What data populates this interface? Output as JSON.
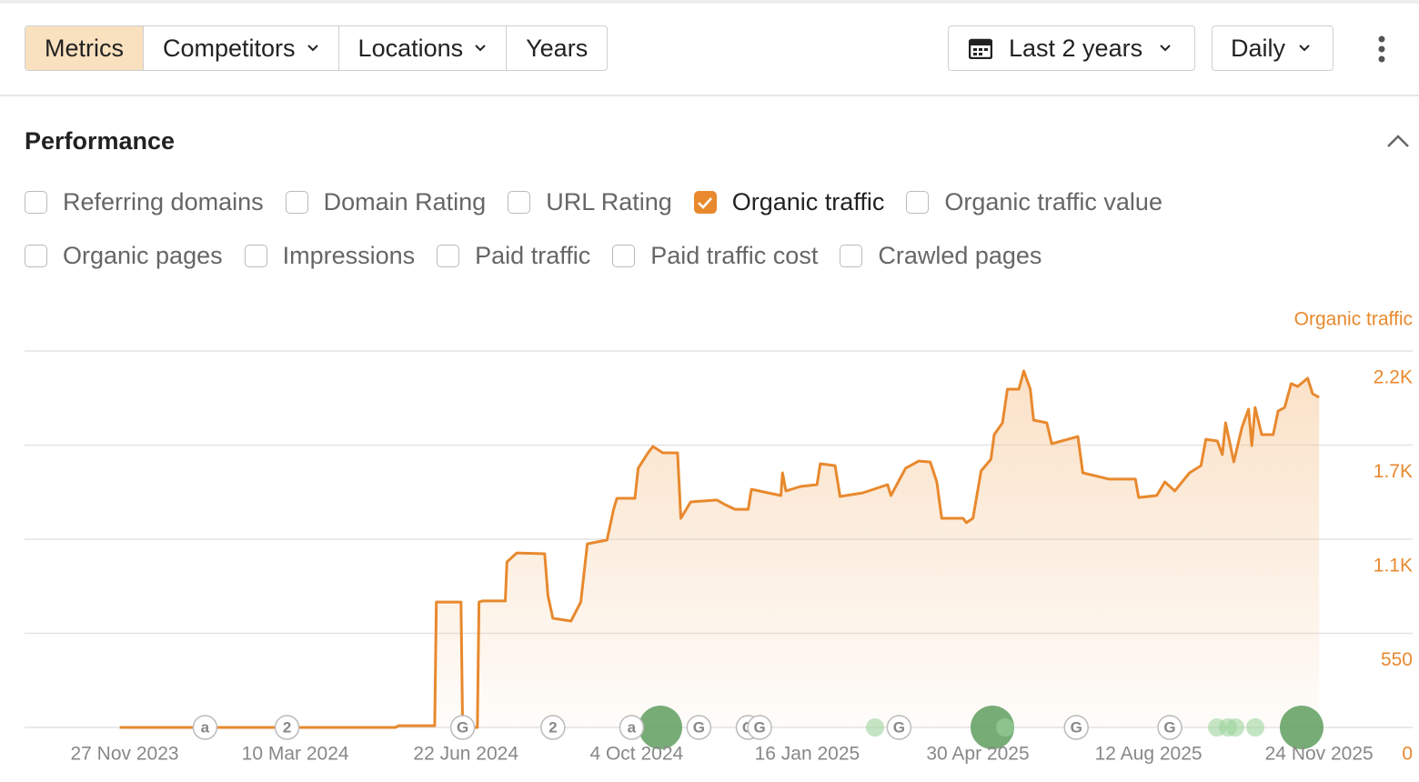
{
  "toolbar": {
    "tabs": [
      {
        "label": "Metrics",
        "active": true,
        "dropdown": false
      },
      {
        "label": "Competitors",
        "active": false,
        "dropdown": true
      },
      {
        "label": "Locations",
        "active": false,
        "dropdown": true
      },
      {
        "label": "Years",
        "active": false,
        "dropdown": false
      }
    ],
    "date_range": "Last 2 years",
    "interval": "Daily"
  },
  "section_title": "Performance",
  "metrics": [
    [
      {
        "label": "Referring domains",
        "checked": false
      },
      {
        "label": "Domain Rating",
        "checked": false
      },
      {
        "label": "URL Rating",
        "checked": false
      },
      {
        "label": "Organic traffic",
        "checked": true
      },
      {
        "label": "Organic traffic value",
        "checked": false
      }
    ],
    [
      {
        "label": "Organic pages",
        "checked": false
      },
      {
        "label": "Impressions",
        "checked": false
      },
      {
        "label": "Paid traffic",
        "checked": false
      },
      {
        "label": "Paid traffic cost",
        "checked": false
      },
      {
        "label": "Crawled pages",
        "checked": false
      }
    ]
  ],
  "chart_data": {
    "type": "area",
    "x": [
      "2023-11-24",
      "2024-05-10",
      "2024-05-12",
      "2024-06-03",
      "2024-06-04",
      "2024-06-19",
      "2024-06-20",
      "2024-06-29",
      "2024-06-30",
      "2024-07-02",
      "2024-07-16",
      "2024-07-17",
      "2024-07-23",
      "2024-08-09",
      "2024-08-11",
      "2024-08-14",
      "2024-08-25",
      "2024-08-31",
      "2024-09-04",
      "2024-09-16",
      "2024-09-20",
      "2024-09-22",
      "2024-10-03",
      "2024-10-05",
      "2024-10-11",
      "2024-10-14",
      "2024-10-20",
      "2024-10-29",
      "2024-10-31",
      "2024-11-06",
      "2024-11-22",
      "2024-11-27",
      "2024-12-03",
      "2024-12-11",
      "2024-12-13",
      "2024-12-31",
      "2025-01-01",
      "2025-01-03",
      "2025-01-12",
      "2025-01-22",
      "2025-01-24",
      "2025-02-02",
      "2025-02-05",
      "2025-02-19",
      "2025-03-06",
      "2025-03-08",
      "2025-03-17",
      "2025-03-25",
      "2025-04-01",
      "2025-04-05",
      "2025-04-08",
      "2025-04-21",
      "2025-04-23",
      "2025-04-27",
      "2025-05-02",
      "2025-05-08",
      "2025-05-10",
      "2025-05-15",
      "2025-05-18",
      "2025-05-25",
      "2025-05-28",
      "2025-06-01",
      "2025-06-03",
      "2025-06-11",
      "2025-06-14",
      "2025-06-30",
      "2025-07-03",
      "2025-07-19",
      "2025-08-04",
      "2025-08-06",
      "2025-08-17",
      "2025-08-22",
      "2025-08-28",
      "2025-09-06",
      "2025-09-13",
      "2025-09-16",
      "2025-09-23",
      "2025-09-26",
      "2025-09-28",
      "2025-10-03",
      "2025-10-08",
      "2025-10-12",
      "2025-10-14",
      "2025-10-16",
      "2025-10-20",
      "2025-10-27",
      "2025-10-30",
      "2025-11-03",
      "2025-11-07",
      "2025-11-11",
      "2025-11-17",
      "2025-11-20",
      "2025-11-24"
    ],
    "series": [
      {
        "name": "Organic traffic",
        "color": "#e8892e",
        "values": [
          0,
          0,
          10,
          10,
          733,
          733,
          0,
          0,
          733,
          739,
          739,
          967,
          1020,
          1015,
          770,
          638,
          622,
          733,
          1073,
          1095,
          1275,
          1339,
          1339,
          1515,
          1605,
          1642,
          1605,
          1605,
          1222,
          1318,
          1329,
          1302,
          1275,
          1275,
          1392,
          1355,
          1488,
          1382,
          1408,
          1419,
          1541,
          1530,
          1350,
          1371,
          1419,
          1355,
          1515,
          1557,
          1551,
          1435,
          1222,
          1222,
          1196,
          1222,
          1499,
          1567,
          1711,
          1780,
          1977,
          1977,
          2083,
          1977,
          1796,
          1780,
          1658,
          1700,
          1488,
          1451,
          1451,
          1344,
          1355,
          1435,
          1382,
          1488,
          1530,
          1684,
          1674,
          1594,
          1780,
          1552,
          1754,
          1860,
          1647,
          1870,
          1711,
          1711,
          1849,
          1870,
          2009,
          1993,
          2041,
          1950,
          1929
        ]
      }
    ],
    "xlim": [
      "2023-09-27",
      "2026-01-20"
    ],
    "xticks": [
      {
        "value": "2023-11-27",
        "label": "27 Nov 2023"
      },
      {
        "value": "2024-03-10",
        "label": "10 Mar 2024"
      },
      {
        "value": "2024-06-22",
        "label": "22 Jun 2024"
      },
      {
        "value": "2024-10-04",
        "label": "4 Oct 2024"
      },
      {
        "value": "2025-01-16",
        "label": "16 Jan 2025"
      },
      {
        "value": "2025-04-30",
        "label": "30 Apr 2025"
      },
      {
        "value": "2025-08-12",
        "label": "12 Aug 2025"
      },
      {
        "value": "2025-11-24",
        "label": "24 Nov 2025"
      }
    ],
    "ylim": [
      0,
      2200
    ],
    "yticks": [
      0,
      550,
      {
        "value": 1100,
        "label": "1.1K"
      },
      {
        "value": 1650,
        "label": "1.7K"
      },
      {
        "value": 2200,
        "label": "2.2K"
      }
    ],
    "grid": true,
    "annotations": [
      {
        "x": "2024-01-15",
        "label": "a"
      },
      {
        "x": "2024-03-05",
        "label": "2"
      },
      {
        "x": "2024-06-20",
        "label": "G"
      },
      {
        "x": "2024-08-14",
        "label": "2"
      },
      {
        "x": "2024-10-01",
        "label": "a"
      },
      {
        "x": "2024-11-11",
        "label": "G"
      },
      {
        "x": "2024-12-11",
        "label": "G"
      },
      {
        "x": "2024-12-18",
        "label": "G"
      },
      {
        "x": "2025-03-13",
        "label": "G"
      },
      {
        "x": "2025-06-29",
        "label": "G"
      },
      {
        "x": "2025-08-25",
        "label": "G"
      }
    ]
  }
}
